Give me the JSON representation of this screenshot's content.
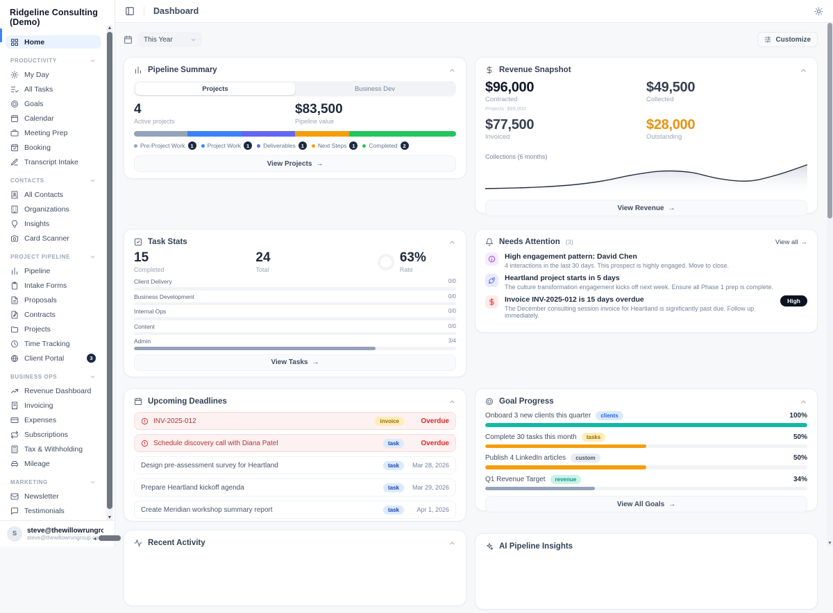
{
  "app": {
    "accent": "#3b82f6",
    "navy_badge": "#1b2942"
  },
  "sidebar": {
    "title": "Ridgeline Consulting (Demo)",
    "home": {
      "label": "Home",
      "icon": "home"
    },
    "sections": [
      {
        "label": "PRODUCTIVITY",
        "items": [
          {
            "label": "My Day",
            "icon": "sun"
          },
          {
            "label": "All Tasks",
            "icon": "list-check"
          },
          {
            "label": "Goals",
            "icon": "target"
          },
          {
            "label": "Calendar",
            "icon": "calendar"
          },
          {
            "label": "Meeting Prep",
            "icon": "briefcase"
          },
          {
            "label": "Booking",
            "icon": "calendar-check"
          },
          {
            "label": "Transcript Intake",
            "icon": "pen-line"
          }
        ]
      },
      {
        "label": "CONTACTS",
        "items": [
          {
            "label": "All Contacts",
            "icon": "book-user"
          },
          {
            "label": "Organizations",
            "icon": "building"
          },
          {
            "label": "Insights",
            "icon": "lightbulb"
          },
          {
            "label": "Card Scanner",
            "icon": "camera"
          }
        ]
      },
      {
        "label": "PROJECT PIPELINE",
        "items": [
          {
            "label": "Pipeline",
            "icon": "chart-col"
          },
          {
            "label": "Intake Forms",
            "icon": "clipboard"
          },
          {
            "label": "Proposals",
            "icon": "file-text"
          },
          {
            "label": "Contracts",
            "icon": "file-pen"
          },
          {
            "label": "Projects",
            "icon": "folder"
          },
          {
            "label": "Time Tracking",
            "icon": "clock"
          },
          {
            "label": "Client Portal",
            "icon": "globe",
            "badge": "3"
          }
        ]
      },
      {
        "label": "BUSINESS OPS",
        "items": [
          {
            "label": "Revenue Dashboard",
            "icon": "trending-up"
          },
          {
            "label": "Invoicing",
            "icon": "receipt"
          },
          {
            "label": "Expenses",
            "icon": "credit-card"
          },
          {
            "label": "Subscriptions",
            "icon": "repeat"
          },
          {
            "label": "Tax & Withholding",
            "icon": "calculator"
          },
          {
            "label": "Mileage",
            "icon": "car"
          }
        ]
      },
      {
        "label": "MARKETING",
        "items": [
          {
            "label": "Newsletter",
            "icon": "mail"
          },
          {
            "label": "Testimonials",
            "icon": "message-square"
          }
        ]
      }
    ],
    "user": {
      "initial": "S",
      "name": "steve@thewillowrungroup.c...",
      "email": "steve@thewillowrungroup.com"
    }
  },
  "header": {
    "title": "Dashboard"
  },
  "toolbar": {
    "filter_label": "This Year",
    "customize_label": "Customize"
  },
  "cards": {
    "pipeline": {
      "title": "Pipeline Summary",
      "icon": "chart-col",
      "tabs": [
        "Projects",
        "Business Dev"
      ],
      "active_tab": 0,
      "stats": [
        {
          "value": "4",
          "label": "Active projects"
        },
        {
          "value": "$83,500",
          "label": "Pipeline value"
        }
      ],
      "segments": [
        {
          "name": "Pre-Project Work",
          "count": "1",
          "color": "#94a3b8",
          "pct": 16.7
        },
        {
          "name": "Project Work",
          "count": "1",
          "color": "#3b82f6",
          "pct": 16.7
        },
        {
          "name": "Deliverables",
          "count": "1",
          "color": "#6366f1",
          "pct": 16.7
        },
        {
          "name": "Next Steps",
          "count": "1",
          "color": "#f59e0b",
          "pct": 16.7
        },
        {
          "name": "Completed",
          "count": "2",
          "color": "#22c55e",
          "pct": 33.2
        }
      ],
      "cta": "View Projects"
    },
    "revenue": {
      "title": "Revenue Snapshot",
      "icon": "dollar-sign",
      "metrics": [
        {
          "value": "$96,000",
          "label": "Contracted",
          "sub": "Projects: $96,000",
          "color": "#111827"
        },
        {
          "value": "$49,500",
          "label": "Collected",
          "sub": "",
          "color": "#374151"
        },
        {
          "value": "$77,500",
          "label": "Invoiced",
          "sub": "",
          "color": "#374151"
        },
        {
          "value": "$28,000",
          "label": "Outstanding",
          "sub": "",
          "color": "#e8920e"
        }
      ],
      "chart_label": "Collections (6 months)",
      "spark_values": [
        12,
        14,
        18,
        25,
        38,
        58,
        72,
        68,
        46,
        38,
        60,
        94
      ],
      "cta": "View Revenue"
    },
    "tasks": {
      "title": "Task Stats",
      "icon": "check-square",
      "stats": [
        {
          "value": "15",
          "label": "Completed"
        },
        {
          "value": "24",
          "label": "Total"
        },
        {
          "value": "63%",
          "label": "Rate"
        }
      ],
      "categories": [
        {
          "name": "Client Delivery",
          "count": "0/0",
          "pct": 0
        },
        {
          "name": "Business Development",
          "count": "0/0",
          "pct": 0
        },
        {
          "name": "Internal Ops",
          "count": "0/0",
          "pct": 0
        },
        {
          "name": "Content",
          "count": "0/0",
          "pct": 0
        },
        {
          "name": "Admin",
          "count": "3/4",
          "pct": 75
        }
      ],
      "bar_color": "#94a3b8",
      "cta": "View Tasks"
    },
    "attention": {
      "title": "Needs Attention",
      "icon": "bell",
      "count": "(3)",
      "view_all": "View all",
      "items": [
        {
          "icon": "info",
          "fg": "#9333ea",
          "bg": "#f5ebfe",
          "title": "High engagement pattern: David Chen",
          "desc": "4 interactions in the last 30 days. This prospect is highly engaged. Move to close."
        },
        {
          "icon": "rocket",
          "fg": "#6366f1",
          "bg": "#e8eafd",
          "title": "Heartland project starts in 5 days",
          "desc": "The culture transformation engagement kicks off next week. Ensure all Phase 1 prep is complete."
        },
        {
          "icon": "dollar-sign",
          "fg": "#dc2626",
          "bg": "#fdeaea",
          "title": "Invoice INV-2025-012 is 15 days overdue",
          "desc": "The December consulting session invoice for Heartland is significantly past due. Follow up immediately.",
          "badge": "High"
        }
      ]
    },
    "deadlines": {
      "title": "Upcoming Deadlines",
      "icon": "calendar",
      "items": [
        {
          "title": "INV-2025-012",
          "tag": "invoice",
          "tag_type": "invoice",
          "status": "Overdue",
          "overdue": true
        },
        {
          "title": "Schedule discovery call with Diana Patel",
          "tag": "task",
          "tag_type": "task",
          "status": "Overdue",
          "overdue": true
        },
        {
          "title": "Design pre-assessment survey for Heartland",
          "tag": "task",
          "tag_type": "task",
          "status": "Mar 28, 2026",
          "overdue": false
        },
        {
          "title": "Prepare Heartland kickoff agenda",
          "tag": "task",
          "tag_type": "task",
          "status": "Mar 29, 2026",
          "overdue": false
        },
        {
          "title": "Create Meridian workshop summary report",
          "tag": "task",
          "tag_type": "task",
          "status": "Apr 1, 2026",
          "overdue": false
        }
      ]
    },
    "goals": {
      "title": "Goal Progress",
      "icon": "target",
      "items": [
        {
          "title": "Onboard 3 new clients this quarter",
          "tag": "clients",
          "tag_bg": "#dbeafe",
          "tag_fg": "#2563eb",
          "pct": "100%",
          "val": 100,
          "color": "#14b8a6"
        },
        {
          "title": "Complete 30 tasks this month",
          "tag": "tasks",
          "tag_bg": "#fdeeb8",
          "tag_fg": "#9a6a07",
          "pct": "50%",
          "val": 50,
          "color": "#f59e0b"
        },
        {
          "title": "Publish 4 LinkedIn articles",
          "tag": "custom",
          "tag_bg": "#e9edf2",
          "tag_fg": "#475569",
          "pct": "50%",
          "val": 50,
          "color": "#f59e0b"
        },
        {
          "title": "Q1 Revenue Target",
          "tag": "revenue",
          "tag_bg": "#c9f3e7",
          "tag_fg": "#0d9488",
          "pct": "34%",
          "val": 34,
          "color": "#94a3b8"
        }
      ],
      "cta": "View All Goals"
    },
    "activity": {
      "title": "Recent Activity",
      "icon": "activity"
    },
    "ai": {
      "title": "AI Pipeline Insights",
      "icon": "sparkles"
    }
  }
}
